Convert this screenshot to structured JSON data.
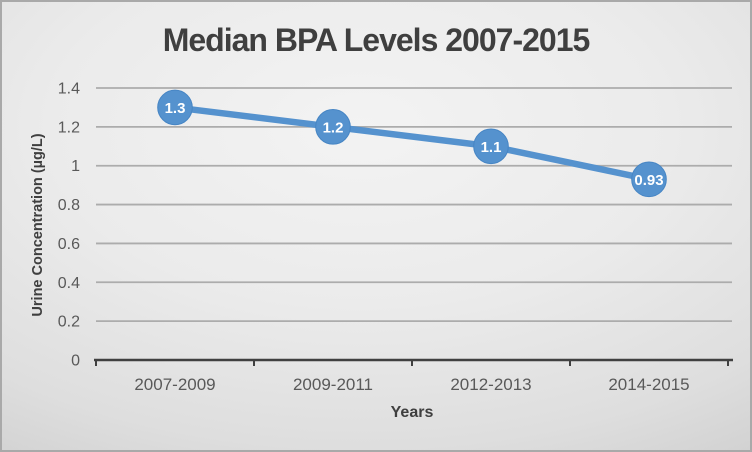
{
  "chart_data": {
    "type": "line",
    "title": "Median BPA Levels 2007-2015",
    "xlabel": "Years",
    "ylabel": "Urine Concentration (µg/L)",
    "categories": [
      "2007-2009",
      "2009-2011",
      "2012-2013",
      "2014-2015"
    ],
    "values": [
      1.3,
      1.2,
      1.1,
      0.93
    ],
    "point_labels": [
      "1.3",
      "1.2",
      "1.1",
      "0.93"
    ],
    "ylim": [
      0,
      1.4
    ],
    "yticks": [
      0,
      0.2,
      0.4,
      0.6,
      0.8,
      1,
      1.2,
      1.4
    ],
    "ytick_labels": [
      "0",
      "0.2",
      "0.4",
      "0.6",
      "0.8",
      "1",
      "1.2",
      "1.4"
    ],
    "grid": true,
    "legend": false,
    "marker_style": "circle",
    "colors": {
      "line": "#5592CE",
      "marker_fill": "#5592CE",
      "marker_edge": "#4685C4",
      "point_label": "#FFFFFF",
      "gridline": "#ACACAC",
      "axis_line": "#404040",
      "tick_label": "#595959",
      "axis_title": "#3F3F3F",
      "title": "#3F3F3F",
      "background_center": "#F3F3F3",
      "background_edge": "#C5C5C5"
    }
  }
}
